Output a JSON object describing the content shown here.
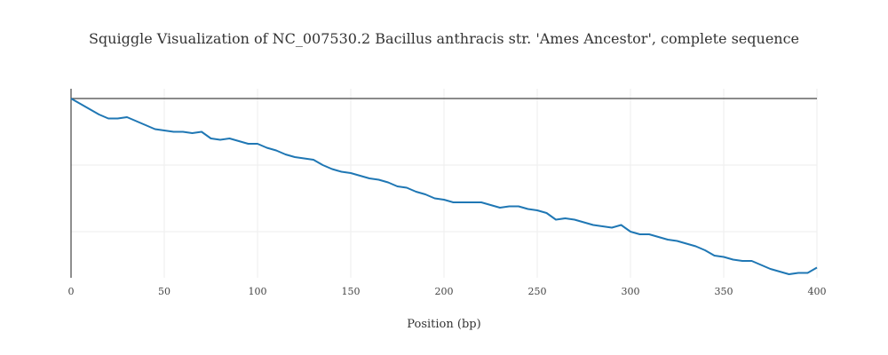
{
  "chart_data": {
    "type": "line",
    "title": "Squiggle Visualization of NC_007530.2 Bacillus anthracis str. 'Ames Ancestor', complete sequence",
    "xlabel": "Position (bp)",
    "ylabel": "",
    "xlim": [
      0,
      400
    ],
    "ylim": [
      -140,
      10
    ],
    "x_ticks": [
      0,
      50,
      100,
      150,
      200,
      250,
      300,
      350,
      400
    ],
    "x_tick_labels": [
      "0",
      "50",
      "100",
      "150",
      "200",
      "250",
      "300",
      "350",
      "400"
    ],
    "y_gridlines": [
      0,
      -50,
      -100
    ],
    "grid": true,
    "y_tick_labels_visible": false,
    "colors": {
      "line": "#1f77b4",
      "zero_line": "#444444",
      "grid": "#eeeeee"
    },
    "series": [
      {
        "x": [
          0,
          5,
          10,
          15,
          20,
          25,
          30,
          35,
          40,
          45,
          50,
          55,
          60,
          65,
          70,
          75,
          80,
          85,
          90,
          95,
          100,
          105,
          110,
          115,
          120,
          125,
          130,
          135,
          140,
          145,
          150,
          155,
          160,
          165,
          170,
          175,
          180,
          185,
          190,
          195,
          200,
          205,
          210,
          215,
          220,
          225,
          230,
          235,
          240,
          245,
          250,
          255,
          260,
          265,
          270,
          275,
          280,
          285,
          290,
          295,
          300,
          305,
          310,
          315,
          320,
          325,
          330,
          335,
          340,
          345,
          350,
          355,
          360,
          365,
          370,
          375,
          380,
          385,
          390,
          395,
          400
        ],
        "y": [
          0,
          -4,
          -8,
          -12,
          -15,
          -15,
          -14,
          -17,
          -20,
          -23,
          -24,
          -25,
          -25,
          -26,
          -25,
          -30,
          -31,
          -30,
          -32,
          -34,
          -34,
          -37,
          -39,
          -42,
          -44,
          -45,
          -46,
          -50,
          -53,
          -55,
          -56,
          -58,
          -60,
          -61,
          -63,
          -66,
          -67,
          -70,
          -72,
          -75,
          -76,
          -78,
          -78,
          -78,
          -78,
          -80,
          -82,
          -81,
          -81,
          -83,
          -84,
          -86,
          -91,
          -90,
          -91,
          -93,
          -95,
          -96,
          -97,
          -95,
          -100,
          -102,
          -102,
          -104,
          -106,
          -107,
          -109,
          -111,
          -114,
          -118,
          -119,
          -121,
          -122,
          -122,
          -125,
          -128,
          -130,
          -132,
          -131,
          -131,
          -127
        ]
      }
    ]
  }
}
